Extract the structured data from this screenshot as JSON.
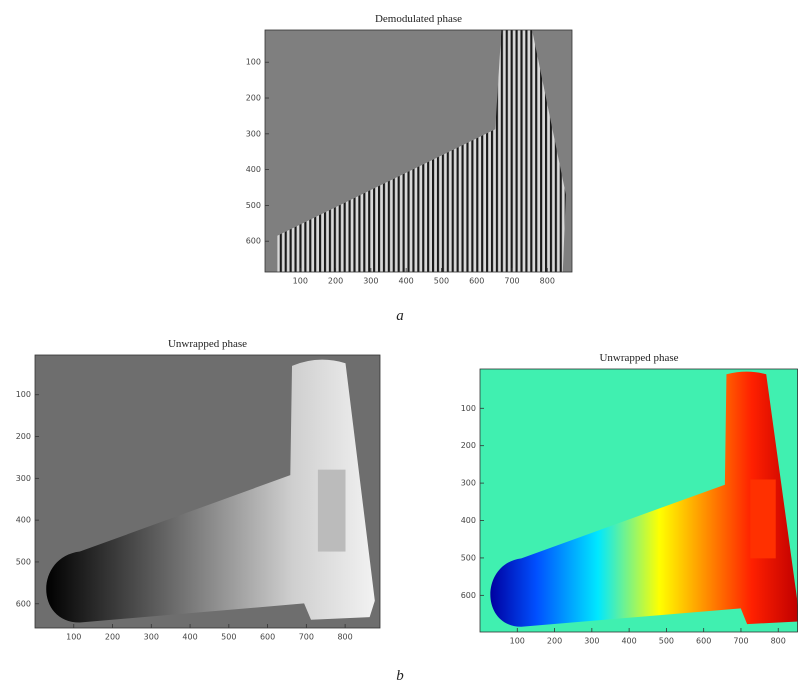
{
  "panels": [
    {
      "title": "Demodulated phase",
      "xlim": [
        0,
        870
      ],
      "ylim": [
        10,
        686
      ],
      "xticks": [
        100,
        200,
        300,
        400,
        500,
        600,
        700,
        800
      ],
      "yticks": [
        100,
        200,
        300,
        400,
        500,
        600
      ]
    },
    {
      "title": "Unwrapped phase",
      "xlim": [
        0,
        890
      ],
      "ylim": [
        5,
        658
      ],
      "xticks": [
        100,
        200,
        300,
        400,
        500,
        600,
        700,
        800
      ],
      "yticks": [
        100,
        200,
        300,
        400,
        500,
        600
      ]
    },
    {
      "title": "Unwrapped phase",
      "xlim": [
        0,
        853
      ],
      "ylim": [
        -5,
        698
      ],
      "xticks": [
        100,
        200,
        300,
        400,
        500,
        600,
        700,
        800
      ],
      "yticks": [
        100,
        200,
        300,
        400,
        500,
        600
      ]
    }
  ],
  "captions": [
    "a",
    "b"
  ]
}
